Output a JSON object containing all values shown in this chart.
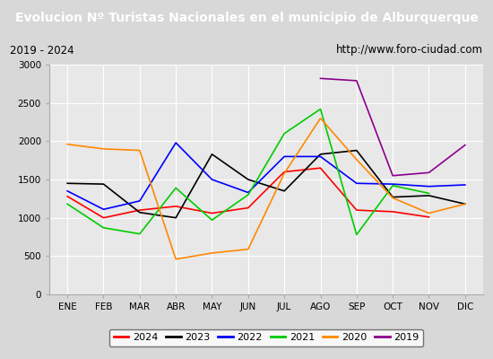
{
  "title": "Evolucion Nº Turistas Nacionales en el municipio de Alburquerque",
  "subtitle_left": "2019 - 2024",
  "subtitle_right": "http://www.foro-ciudad.com",
  "months": [
    "ENE",
    "FEB",
    "MAR",
    "ABR",
    "MAY",
    "JUN",
    "JUL",
    "AGO",
    "SEP",
    "OCT",
    "NOV",
    "DIC"
  ],
  "series": {
    "2024": {
      "color": "#ff0000",
      "data": [
        1280,
        1000,
        1100,
        1150,
        1060,
        1130,
        1600,
        1650,
        1100,
        1080,
        1010,
        null
      ]
    },
    "2023": {
      "color": "#000000",
      "data": [
        1450,
        1440,
        1070,
        1000,
        1830,
        1500,
        1350,
        1830,
        1880,
        1270,
        1290,
        1180
      ]
    },
    "2022": {
      "color": "#0000ff",
      "data": [
        1350,
        1110,
        1220,
        1980,
        1500,
        1330,
        1800,
        1800,
        1450,
        1440,
        1410,
        1430
      ]
    },
    "2021": {
      "color": "#00cc00",
      "data": [
        1180,
        870,
        790,
        1390,
        970,
        1300,
        2100,
        2420,
        780,
        1420,
        1320,
        null
      ]
    },
    "2020": {
      "color": "#ff8800",
      "data": [
        1960,
        1900,
        1880,
        460,
        540,
        590,
        1580,
        2300,
        1760,
        1260,
        1060,
        1180
      ]
    },
    "2019": {
      "color": "#8b008b",
      "data": [
        null,
        null,
        null,
        null,
        null,
        null,
        null,
        2820,
        2790,
        1550,
        1590,
        1950
      ]
    }
  },
  "ylim": [
    0,
    3000
  ],
  "yticks": [
    0,
    500,
    1000,
    1500,
    2000,
    2500,
    3000
  ],
  "title_bg": "#5b9bd5",
  "title_color": "#ffffff",
  "title_fontsize": 10,
  "subtitle_bg": "#f0f0f0",
  "plot_bg": "#e8e8e8",
  "fig_bg": "#d8d8d8",
  "legend_order": [
    "2024",
    "2023",
    "2022",
    "2021",
    "2020",
    "2019"
  ]
}
